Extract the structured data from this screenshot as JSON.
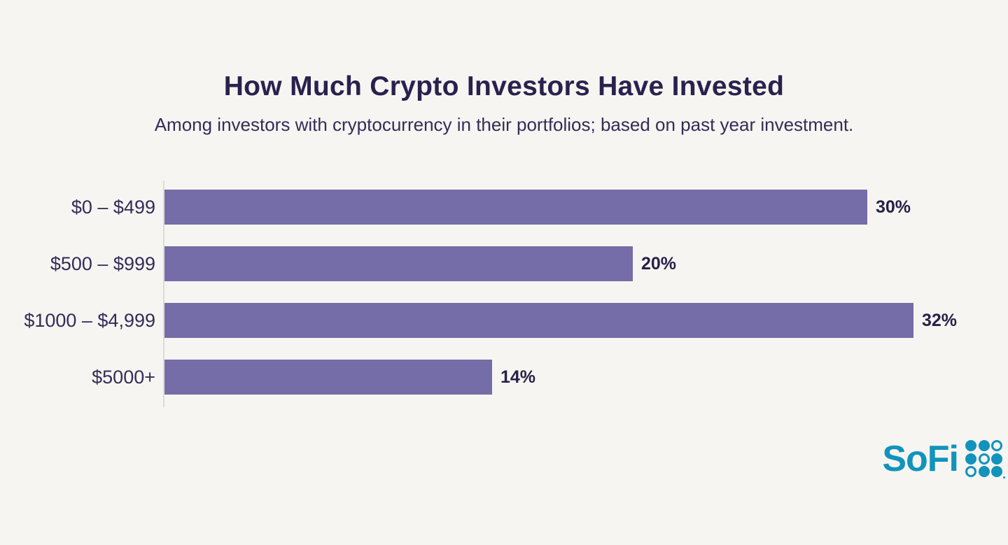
{
  "page": {
    "background_color": "#F7F5F1"
  },
  "header": {
    "title": "How Much Crypto Investors Have Invested",
    "subtitle": "Among investors with cryptocurrency in their portfolios; based on past year investment."
  },
  "chart_data": {
    "type": "bar",
    "orientation": "horizontal",
    "title": "How Much Crypto Investors Have Invested",
    "subtitle": "Among investors with cryptocurrency in their portfolios; based on past year investment.",
    "categories": [
      "$0 – $499",
      "$500 – $999",
      "$1000 – $4,999",
      "$5000+"
    ],
    "values": [
      30,
      20,
      32,
      14
    ],
    "value_labels": [
      "30%",
      "20%",
      "32%",
      "14%"
    ],
    "xlabel": "",
    "ylabel": "",
    "xlim": [
      0,
      34
    ],
    "grid": false,
    "legend": "none",
    "bar_color": "#756DA7",
    "axis_line_color": "#DFDCD6",
    "text_color": "#29224E"
  },
  "branding": {
    "logo_text": "SoFi",
    "logo_color": "#1193BC",
    "logo_dot_grid": [
      [
        "filled",
        "filled",
        "outline"
      ],
      [
        "filled",
        "outline",
        "filled"
      ],
      [
        "outline",
        "filled",
        "filled"
      ]
    ]
  }
}
